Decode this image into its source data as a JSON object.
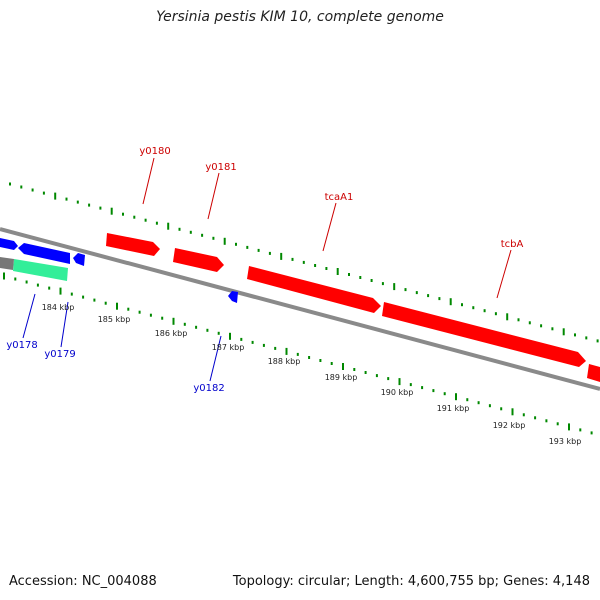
{
  "title": "Yersinia pestis KIM 10, complete genome",
  "footer": {
    "accession": "Accession: NC_004088",
    "summary": "Topology: circular; Length: 4,600,755 bp; Genes: 4,148"
  },
  "colors": {
    "forward_gene": "#ff0000",
    "reverse_gene": "#0000ff",
    "rna_gene": "#33ee99",
    "backbone": "#888888",
    "tick": "#008800",
    "forward_label": "#cc0000",
    "reverse_label": "#0000cc"
  },
  "scale_labels": [
    "184 kbp",
    "185 kbp",
    "186 kbp",
    "187 kbp",
    "188 kbp",
    "189 kbp",
    "190 kbp",
    "191 kbp",
    "192 kbp",
    "193 kbp"
  ],
  "forward_labels": [
    "y0180",
    "y0181",
    "tcaA1",
    "tcbA"
  ],
  "reverse_labels": [
    "y0178",
    "y0179",
    "y0182"
  ]
}
